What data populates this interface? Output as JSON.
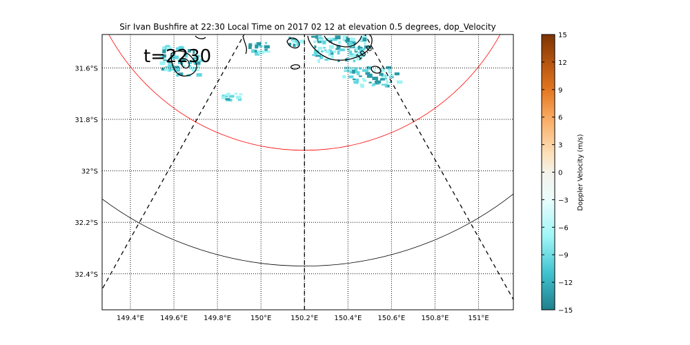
{
  "chart_data": {
    "type": "heatmap",
    "title": "Sir Ivan Bushfire at 22:30 Local Time on 2017 02 12 at elevation 0.5 degrees, dop_Velocity",
    "annotation": "t=2230",
    "contour_label": "10.0",
    "lon_range": [
      149.27,
      151.16
    ],
    "lat_range": [
      -32.54,
      -31.47
    ],
    "x_ticks": [
      {
        "value": 149.4,
        "label": "149.4°E"
      },
      {
        "value": 149.6,
        "label": "149.6°E"
      },
      {
        "value": 149.8,
        "label": "149.8°E"
      },
      {
        "value": 150.0,
        "label": "150°E"
      },
      {
        "value": 150.2,
        "label": "150.2°E"
      },
      {
        "value": 150.4,
        "label": "150.4°E"
      },
      {
        "value": 150.6,
        "label": "150.6°E"
      },
      {
        "value": 150.8,
        "label": "150.8°E"
      },
      {
        "value": 151.0,
        "label": "151°E"
      }
    ],
    "y_ticks": [
      {
        "value": -31.6,
        "label": "31.6°S"
      },
      {
        "value": -31.8,
        "label": "31.8°S"
      },
      {
        "value": -32.0,
        "label": "32°S"
      },
      {
        "value": -32.2,
        "label": "32.2°S"
      },
      {
        "value": -32.4,
        "label": "32.4°S"
      }
    ],
    "grid": "dotted",
    "colorbar": {
      "label": "Doppler Velocity (m/s)",
      "range": [
        -15,
        15
      ],
      "ticks": [
        "15",
        "12",
        "9",
        "6",
        "3",
        "0",
        "−3",
        "−6",
        "−9",
        "−12",
        "−15"
      ],
      "tick_values": [
        15,
        12,
        9,
        6,
        3,
        0,
        -3,
        -6,
        -9,
        -12,
        -15
      ],
      "colors": [
        "#1f7f8c",
        "#40c2cf",
        "#9ff6f7",
        "#eafcfc",
        "#f5f2ea",
        "#fde0b8",
        "#f9a860",
        "#e27620",
        "#b45410",
        "#7d3404"
      ],
      "color_stops": [
        -15,
        -11,
        -7,
        -3,
        0,
        2,
        6,
        9,
        12,
        15
      ]
    },
    "radar_range_rings": [
      {
        "color": "#ff0000",
        "center": [
          150.2,
          -31.05
        ],
        "radius_deg": 0.87
      },
      {
        "color": "#000000",
        "center": [
          150.2,
          -31.05
        ],
        "radius_deg": 1.32
      }
    ],
    "radial_lines_lon_at_bottom": [
      149.27,
      150.2,
      151.16
    ],
    "echo_clusters": [
      {
        "region": "northwest",
        "lon": 149.62,
        "lat": -31.58,
        "velocity": -11
      },
      {
        "region": "central-west",
        "lon": 149.86,
        "lat": -31.71,
        "velocity": -12
      },
      {
        "region": "north-central",
        "lon": 150.45,
        "lat": -31.58,
        "velocity": -8
      },
      {
        "region": "north-central",
        "lon": 150.52,
        "lat": -31.64,
        "velocity": -9
      }
    ]
  },
  "colors": {
    "ring_inner": "#ff0000",
    "ring_outer": "#000000",
    "echo_light": "#9ff3f5",
    "echo_mid": "#5fd7e0",
    "echo_dark": "#2a9aa5"
  }
}
